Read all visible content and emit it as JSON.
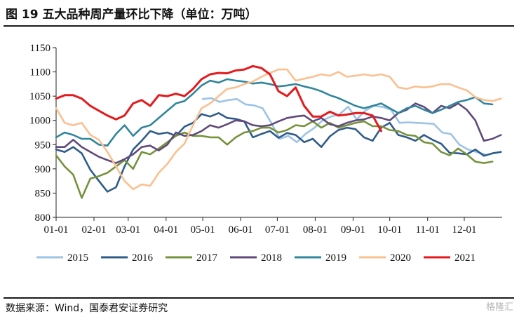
{
  "figure": {
    "title": "图 19 五大品种周产量环比下降（单位：万吨）",
    "source": "数据来源：Wind，国泰君安证券研究",
    "watermark": "格隆汇"
  },
  "chart_data": {
    "type": "line",
    "title": "",
    "xlabel": "",
    "ylabel": "",
    "ylim": [
      800,
      1150
    ],
    "yticks": [
      800,
      850,
      900,
      950,
      1000,
      1050,
      1100,
      1150
    ],
    "xlim": [
      1,
      366
    ],
    "x_tick_labels": [
      "01-01",
      "02-01",
      "03-01",
      "04-01",
      "05-01",
      "06-01",
      "07-01",
      "08-01",
      "09-01",
      "10-01",
      "11-01",
      "12-01"
    ],
    "x_tick_days": [
      1,
      32,
      60,
      91,
      121,
      152,
      182,
      213,
      244,
      274,
      305,
      335
    ],
    "grid": false,
    "legend": "bottom",
    "series": [
      {
        "name": "2015",
        "color": "#9dc3e6",
        "x": [
          121,
          128,
          135,
          142,
          149,
          156,
          163,
          170,
          177,
          184,
          191,
          198,
          205,
          212,
          219,
          226,
          233,
          240,
          247,
          254,
          261,
          268,
          275,
          282,
          289,
          296,
          303,
          310,
          317,
          324,
          331,
          338,
          345,
          352
        ],
        "values": [
          1044,
          1046,
          1038,
          1042,
          1044,
          1033,
          1031,
          1025,
          995,
          962,
          968,
          955,
          972,
          984,
          1000,
          1008,
          1013,
          1028,
          1002,
          1020,
          1030,
          1028,
          1022,
          995,
          996,
          995,
          994,
          993,
          975,
          972,
          950,
          940,
          935,
          930
        ]
      },
      {
        "name": "2016",
        "color": "#2e5c8a",
        "x": [
          1,
          8,
          15,
          22,
          29,
          36,
          43,
          50,
          57,
          64,
          71,
          78,
          85,
          92,
          99,
          106,
          113,
          120,
          127,
          134,
          141,
          148,
          155,
          162,
          169,
          176,
          183,
          190,
          197,
          204,
          211,
          218,
          225,
          232,
          239,
          246,
          253,
          260,
          267,
          274,
          281,
          288,
          295,
          302,
          309,
          316,
          323,
          330,
          337,
          344,
          351,
          358,
          365
        ],
        "values": [
          940,
          935,
          945,
          932,
          898,
          875,
          853,
          862,
          905,
          940,
          958,
          978,
          972,
          975,
          968,
          987,
          995,
          1013,
          1008,
          1015,
          1005,
          1003,
          998,
          965,
          972,
          978,
          964,
          974,
          970,
          955,
          962,
          945,
          967,
          980,
          985,
          982,
          965,
          958,
          985,
          995,
          970,
          965,
          958,
          970,
          960,
          952,
          933,
          932,
          930,
          940,
          927,
          932,
          935
        ]
      },
      {
        "name": "2017",
        "color": "#76923c",
        "x": [
          1,
          8,
          15,
          22,
          29,
          36,
          43,
          50,
          57,
          64,
          71,
          78,
          85,
          92,
          99,
          106,
          113,
          120,
          127,
          134,
          141,
          148,
          155,
          162,
          169,
          176,
          183,
          190,
          197,
          204,
          211,
          218,
          225,
          232,
          239,
          246,
          253,
          260,
          267,
          274,
          281,
          288,
          295,
          302,
          309,
          316,
          323,
          330,
          337,
          344,
          351,
          358
        ],
        "values": [
          928,
          905,
          888,
          840,
          880,
          885,
          892,
          905,
          918,
          900,
          935,
          930,
          942,
          955,
          968,
          975,
          968,
          968,
          965,
          965,
          950,
          965,
          975,
          978,
          985,
          985,
          975,
          980,
          990,
          988,
          998,
          985,
          995,
          985,
          990,
          995,
          998,
          988,
          988,
          980,
          978,
          970,
          968,
          955,
          952,
          935,
          928,
          942,
          930,
          915,
          912,
          915
        ]
      },
      {
        "name": "2018",
        "color": "#604a7b",
        "x": [
          1,
          8,
          15,
          22,
          29,
          36,
          43,
          50,
          57,
          64,
          71,
          78,
          85,
          92,
          99,
          106,
          113,
          120,
          127,
          134,
          141,
          148,
          155,
          162,
          169,
          176,
          183,
          190,
          197,
          204,
          211,
          218,
          225,
          232,
          239,
          246,
          253,
          260,
          267,
          274,
          281,
          288,
          295,
          302,
          309,
          316,
          323,
          330,
          337,
          344,
          351,
          358,
          365
        ],
        "values": [
          945,
          945,
          960,
          945,
          935,
          925,
          918,
          912,
          920,
          930,
          945,
          948,
          938,
          950,
          975,
          968,
          970,
          978,
          990,
          985,
          992,
          1000,
          998,
          990,
          988,
          990,
          998,
          1005,
          1008,
          1010,
          998,
          1005,
          992,
          988,
          995,
          1000,
          1002,
          1008,
          1005,
          1000,
          1015,
          1022,
          1035,
          1028,
          1015,
          1030,
          1025,
          1035,
          1022,
          1000,
          958,
          962,
          970
        ]
      },
      {
        "name": "2019",
        "color": "#31859c",
        "x": [
          1,
          8,
          15,
          22,
          29,
          36,
          43,
          50,
          57,
          64,
          71,
          78,
          85,
          92,
          99,
          106,
          113,
          120,
          127,
          134,
          141,
          148,
          155,
          162,
          169,
          176,
          183,
          190,
          197,
          204,
          211,
          218,
          225,
          232,
          239,
          246,
          253,
          260,
          267,
          274,
          281,
          288,
          295,
          302,
          309,
          316,
          323,
          330,
          337,
          344,
          351,
          358
        ],
        "values": [
          965,
          975,
          970,
          962,
          962,
          950,
          948,
          972,
          990,
          968,
          985,
          990,
          1005,
          1020,
          1035,
          1040,
          1055,
          1072,
          1082,
          1078,
          1085,
          1082,
          1080,
          1076,
          1078,
          1075,
          1070,
          1072,
          1075,
          1070,
          1066,
          1060,
          1052,
          1046,
          1038,
          1030,
          1025,
          1030,
          1035,
          1025,
          1015,
          1025,
          1030,
          1022,
          1015,
          1022,
          1030,
          1038,
          1042,
          1048,
          1035,
          1033
        ]
      },
      {
        "name": "2020",
        "color": "#fac090",
        "x": [
          1,
          8,
          15,
          22,
          29,
          36,
          43,
          50,
          57,
          64,
          71,
          78,
          85,
          92,
          99,
          106,
          113,
          120,
          127,
          134,
          141,
          148,
          155,
          162,
          169,
          176,
          183,
          190,
          197,
          204,
          211,
          218,
          225,
          232,
          239,
          246,
          253,
          260,
          267,
          274,
          281,
          288,
          295,
          302,
          309,
          316,
          323,
          330,
          337,
          344,
          351,
          358,
          365
        ],
        "values": [
          1025,
          995,
          990,
          995,
          970,
          960,
          935,
          905,
          875,
          858,
          868,
          865,
          892,
          910,
          935,
          952,
          990,
          1025,
          1035,
          1050,
          1065,
          1068,
          1075,
          1080,
          1090,
          1098,
          1105,
          1105,
          1082,
          1086,
          1090,
          1095,
          1092,
          1100,
          1090,
          1092,
          1095,
          1092,
          1095,
          1090,
          1068,
          1065,
          1070,
          1068,
          1070,
          1075,
          1075,
          1068,
          1062,
          1048,
          1042,
          1040,
          1045
        ]
      },
      {
        "name": "2021",
        "color": "#e41a1c",
        "x": [
          1,
          8,
          15,
          22,
          29,
          36,
          43,
          50,
          57,
          64,
          71,
          78,
          85,
          92,
          99,
          106,
          113,
          120,
          127,
          134,
          141,
          148,
          155,
          162,
          169,
          176,
          183,
          190,
          197,
          204,
          211,
          218,
          225,
          232,
          239,
          246,
          253,
          260,
          267
        ],
        "values": [
          1045,
          1052,
          1052,
          1045,
          1030,
          1020,
          1010,
          1002,
          1010,
          1035,
          1042,
          1030,
          1052,
          1050,
          1055,
          1050,
          1065,
          1085,
          1095,
          1098,
          1097,
          1103,
          1105,
          1112,
          1108,
          1095,
          1060,
          1050,
          1068,
          1030,
          1008,
          1008,
          1018,
          1010,
          1012,
          1015,
          1015,
          1010,
          978
        ]
      }
    ]
  }
}
